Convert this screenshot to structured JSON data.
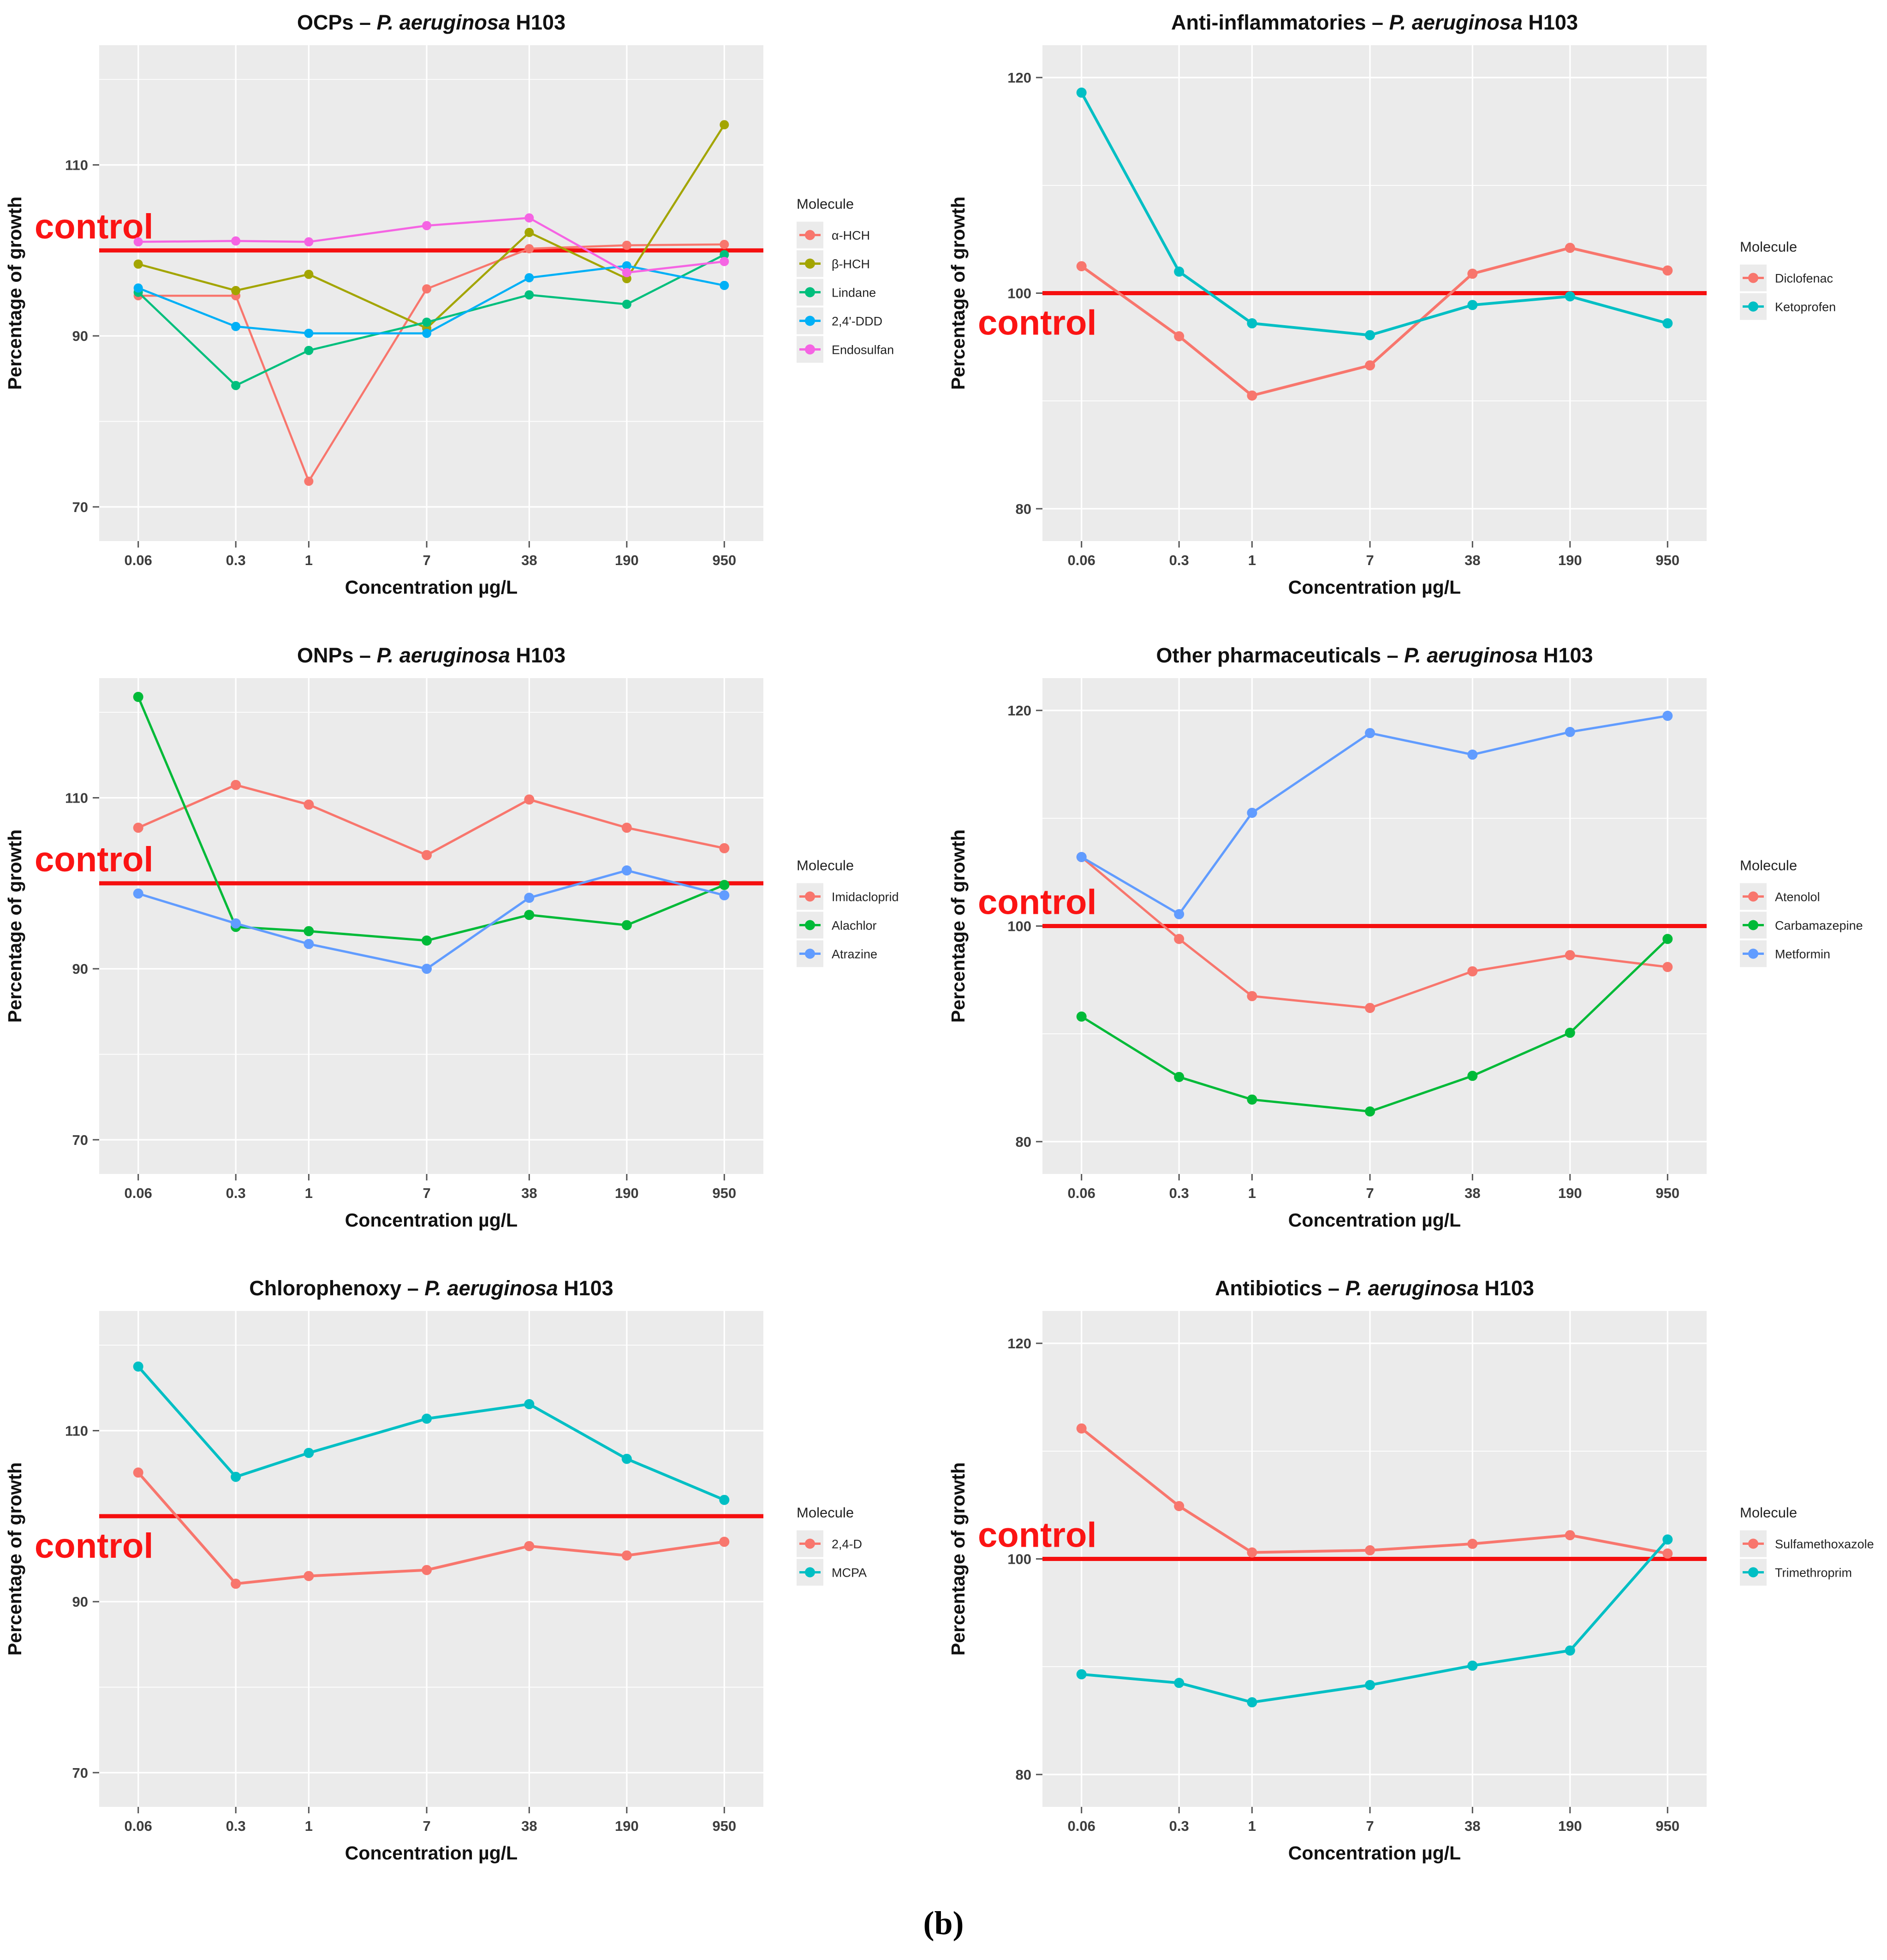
{
  "figure_label": "(b)",
  "shared": {
    "xlabel": "Concentration µg/L",
    "ylabel": "Percentage of growth",
    "control_label": "control",
    "legend_title": "Molecule",
    "categories": [
      "0.06",
      "0.3",
      "1",
      "7",
      "38",
      "190",
      "950"
    ],
    "colors": {
      "control_line": "#F50F0F",
      "control_text": "#FB1414",
      "panel_bg": "#EBEBEB",
      "grid": "#FFFFFF",
      "title": "#111111",
      "tick_text": "#3D3D3D",
      "axis_title": "#111111",
      "legend_text": "#222222"
    }
  },
  "chart_data": [
    {
      "type": "line",
      "title_prefix": "OCPs – ",
      "title_species": "P. aeruginosa",
      "title_suffix": " H103",
      "xlabel": "Concentration µg/L",
      "ylabel": "Percentage of growth",
      "x": [
        "0.06",
        "0.3",
        "1",
        "7",
        "38",
        "190",
        "950"
      ],
      "yticks": [
        70,
        90,
        110
      ],
      "ylim": [
        66,
        124
      ],
      "control_value": 100,
      "control_label_position": "above",
      "legend_title": "Molecule",
      "legend_position": "right",
      "grid": true,
      "series": [
        {
          "name": "α-HCH",
          "color": "#F8766D",
          "values": [
            94.7,
            94.7,
            73.0,
            95.5,
            100.2,
            100.6,
            100.7
          ]
        },
        {
          "name": "β-HCH",
          "color": "#A3A500",
          "values": [
            98.4,
            95.3,
            97.2,
            90.9,
            102.1,
            96.7,
            114.7
          ]
        },
        {
          "name": "Lindane",
          "color": "#00BF7D",
          "values": [
            95.1,
            84.2,
            88.3,
            91.6,
            94.8,
            93.7,
            99.5
          ]
        },
        {
          "name": "2,4'-DDD",
          "color": "#00B0F6",
          "values": [
            95.6,
            91.1,
            90.3,
            90.3,
            96.8,
            98.2,
            95.9
          ]
        },
        {
          "name": "Endosulfan",
          "color": "#F564E3",
          "values": [
            101.0,
            101.1,
            101.0,
            102.9,
            103.8,
            97.4,
            98.7
          ]
        }
      ]
    },
    {
      "type": "line",
      "title_prefix": "Anti-inflammatories – ",
      "title_species": "P. aeruginosa",
      "title_suffix": " H103",
      "xlabel": "Concentration µg/L",
      "ylabel": "Percentage of growth",
      "x": [
        "0.06",
        "0.3",
        "1",
        "7",
        "38",
        "190",
        "950"
      ],
      "yticks": [
        80,
        100,
        120
      ],
      "ylim": [
        77,
        123
      ],
      "control_value": 100,
      "control_label_position": "below",
      "legend_title": "Molecule",
      "legend_position": "right",
      "grid": true,
      "series": [
        {
          "name": "Diclofenac",
          "color": "#F8766D",
          "values": [
            102.5,
            96.0,
            90.5,
            93.3,
            101.8,
            104.2,
            102.1
          ]
        },
        {
          "name": "Ketoprofen",
          "color": "#00BFC4",
          "values": [
            118.6,
            102.0,
            97.2,
            96.1,
            98.9,
            99.7,
            97.2
          ]
        }
      ]
    },
    {
      "type": "line",
      "title_prefix": "ONPs – ",
      "title_species": "P. aeruginosa",
      "title_suffix": " H103",
      "xlabel": "Concentration µg/L",
      "ylabel": "Percentage of growth",
      "x": [
        "0.06",
        "0.3",
        "1",
        "7",
        "38",
        "190",
        "950"
      ],
      "yticks": [
        70,
        90,
        110
      ],
      "ylim": [
        66,
        124
      ],
      "control_value": 100,
      "control_label_position": "above",
      "legend_title": "Molecule",
      "legend_position": "right",
      "grid": true,
      "series": [
        {
          "name": "Imidacloprid",
          "color": "#F8766D",
          "values": [
            106.5,
            111.5,
            109.2,
            103.3,
            109.8,
            106.5,
            104.1
          ]
        },
        {
          "name": "Alachlor",
          "color": "#00BA38",
          "values": [
            121.8,
            94.9,
            94.4,
            93.3,
            96.3,
            95.1,
            99.8
          ]
        },
        {
          "name": "Atrazine",
          "color": "#619CFF",
          "values": [
            98.8,
            95.3,
            92.9,
            90.0,
            98.3,
            101.5,
            98.6
          ]
        }
      ]
    },
    {
      "type": "line",
      "title_prefix": "Other pharmaceuticals – ",
      "title_species": "P. aeruginosa",
      "title_suffix": " H103",
      "xlabel": "Concentration µg/L",
      "ylabel": "Percentage of growth",
      "x": [
        "0.06",
        "0.3",
        "1",
        "7",
        "38",
        "190",
        "950"
      ],
      "yticks": [
        80,
        100,
        120
      ],
      "ylim": [
        77,
        123
      ],
      "control_value": 100,
      "control_label_position": "above",
      "legend_title": "Molecule",
      "legend_position": "right",
      "grid": true,
      "series": [
        {
          "name": "Atenolol",
          "color": "#F8766D",
          "values": [
            106.4,
            98.8,
            93.5,
            92.4,
            95.8,
            97.3,
            96.2
          ]
        },
        {
          "name": "Carbamazepine",
          "color": "#00BA38",
          "values": [
            91.6,
            86.0,
            83.9,
            82.8,
            86.1,
            90.1,
            98.8
          ]
        },
        {
          "name": "Metformin",
          "color": "#619CFF",
          "values": [
            106.4,
            101.1,
            110.5,
            117.9,
            115.9,
            118.0,
            119.5
          ]
        }
      ]
    },
    {
      "type": "line",
      "title_prefix": "Chlorophenoxy – ",
      "title_species": "P. aeruginosa",
      "title_suffix": " H103",
      "xlabel": "Concentration µg/L",
      "ylabel": "Percentage of growth",
      "x": [
        "0.06",
        "0.3",
        "1",
        "7",
        "38",
        "190",
        "950"
      ],
      "yticks": [
        70,
        90,
        110
      ],
      "ylim": [
        66,
        124
      ],
      "control_value": 100,
      "control_label_position": "below",
      "legend_title": "Molecule",
      "legend_position": "right",
      "grid": true,
      "series": [
        {
          "name": "2,4-D",
          "color": "#F8766D",
          "values": [
            105.1,
            92.1,
            93.0,
            93.7,
            96.5,
            95.4,
            97.0
          ]
        },
        {
          "name": "MCPA",
          "color": "#00BFC4",
          "values": [
            117.5,
            104.6,
            107.4,
            111.4,
            113.1,
            106.7,
            101.9
          ]
        }
      ]
    },
    {
      "type": "line",
      "title_prefix": "Antibiotics – ",
      "title_species": "P. aeruginosa",
      "title_suffix": " H103",
      "xlabel": "Concentration µg/L",
      "ylabel": "Percentage of growth",
      "x": [
        "0.06",
        "0.3",
        "1",
        "7",
        "38",
        "190",
        "950"
      ],
      "yticks": [
        80,
        100,
        120
      ],
      "ylim": [
        77,
        123
      ],
      "control_value": 100,
      "control_label_position": "above",
      "legend_title": "Molecule",
      "legend_position": "right",
      "grid": true,
      "series": [
        {
          "name": "Sulfamethoxazole",
          "color": "#F8766D",
          "values": [
            112.1,
            104.9,
            100.6,
            100.8,
            101.4,
            102.2,
            100.5
          ]
        },
        {
          "name": "Trimethroprim",
          "color": "#00BFC4",
          "values": [
            89.3,
            88.5,
            86.7,
            88.3,
            90.1,
            91.5,
            101.8
          ]
        }
      ]
    }
  ]
}
